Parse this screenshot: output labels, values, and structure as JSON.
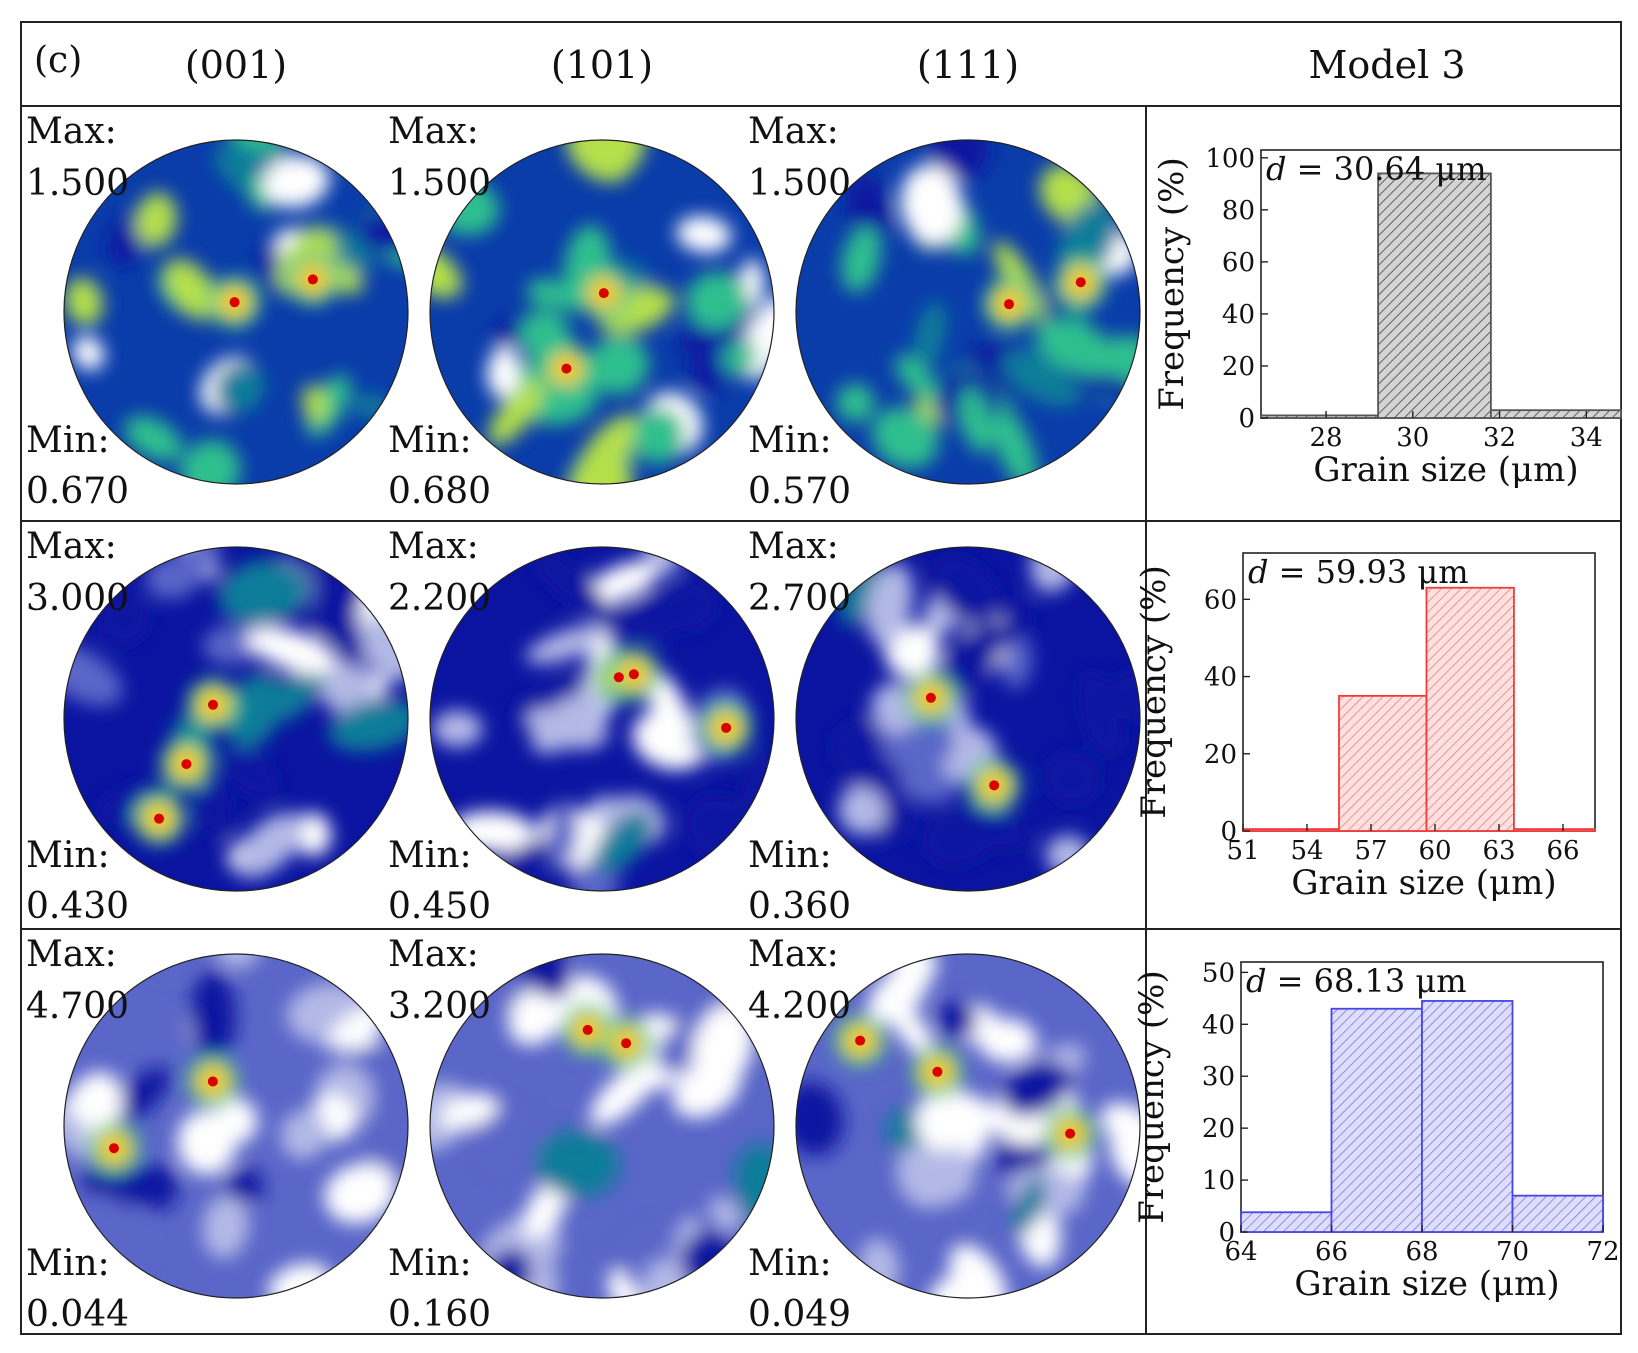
{
  "panel_label": "(c)",
  "header": {
    "col1": "(001)",
    "col2": "(101)",
    "col3": "(111)",
    "col4": "Model 3"
  },
  "pole_rows": [
    {
      "max": [
        "1.500",
        "1.500",
        "1.500"
      ],
      "min": [
        "0.670",
        "0.680",
        "0.570"
      ]
    },
    {
      "max": [
        "3.000",
        "2.200",
        "2.700"
      ],
      "min": [
        "0.430",
        "0.450",
        "0.360"
      ]
    },
    {
      "max": [
        "4.700",
        "3.200",
        "4.200"
      ],
      "min": [
        "0.044",
        "0.160",
        "0.049"
      ]
    }
  ],
  "labels": {
    "max": "Max:",
    "min": "Min:"
  },
  "colormap": [
    "#ffffff",
    "#b3b9e6",
    "#5a66c8",
    "#0a14a0",
    "#0a3caa",
    "#0b7d9a",
    "#2fbf8e",
    "#b5e04b",
    "#f5e81a",
    "#f59a1a",
    "#d90000"
  ],
  "chart_data": [
    {
      "type": "bar",
      "annotation_var": "d",
      "annotation_value": " = 30.64 μm",
      "xlabel": "Grain size (μm)",
      "ylabel": "Frequency (%)",
      "xlim": [
        26.5,
        34.8
      ],
      "ylim": [
        0,
        103
      ],
      "xticks": [
        "28",
        "30",
        "32",
        "34"
      ],
      "yticks": [
        "0",
        "20",
        "40",
        "60",
        "80",
        "100"
      ],
      "bins": [
        [
          26.5,
          29.2
        ],
        [
          29.2,
          31.8
        ],
        [
          31.8,
          34.8
        ]
      ],
      "values": [
        1,
        94,
        3
      ],
      "color": "#555555",
      "fill": "#d4d4d4"
    },
    {
      "type": "bar",
      "annotation_var": "d",
      "annotation_value": " = 59.93 μm",
      "xlabel": "Grain size (μm)",
      "ylabel": "Frequency (%)",
      "xlim": [
        51,
        67.5
      ],
      "ylim": [
        0,
        72
      ],
      "xticks": [
        "51",
        "54",
        "57",
        "60",
        "63",
        "66"
      ],
      "yticks": [
        "0",
        "20",
        "40",
        "60"
      ],
      "bins": [
        [
          51,
          55.5
        ],
        [
          55.5,
          59.6
        ],
        [
          59.6,
          63.7
        ],
        [
          63.7,
          67.5
        ]
      ],
      "values": [
        0.5,
        35,
        63,
        0.5
      ],
      "color": "#f03c3c",
      "fill": "#fbd2d2"
    },
    {
      "type": "bar",
      "annotation_var": "d",
      "annotation_value": " = 68.13 μm",
      "xlabel": "Grain size (μm)",
      "ylabel": "Frequency (%)",
      "xlim": [
        64,
        72
      ],
      "ylim": [
        0,
        52
      ],
      "xticks": [
        "64",
        "66",
        "68",
        "70",
        "72"
      ],
      "yticks": [
        "0",
        "10",
        "20",
        "30",
        "40",
        "50"
      ],
      "bins": [
        [
          64,
          66
        ],
        [
          66,
          68
        ],
        [
          68,
          70
        ],
        [
          70,
          72
        ]
      ],
      "values": [
        3.8,
        43,
        44.5,
        7
      ],
      "color": "#4646e6",
      "fill": "#d2d2f8"
    }
  ]
}
